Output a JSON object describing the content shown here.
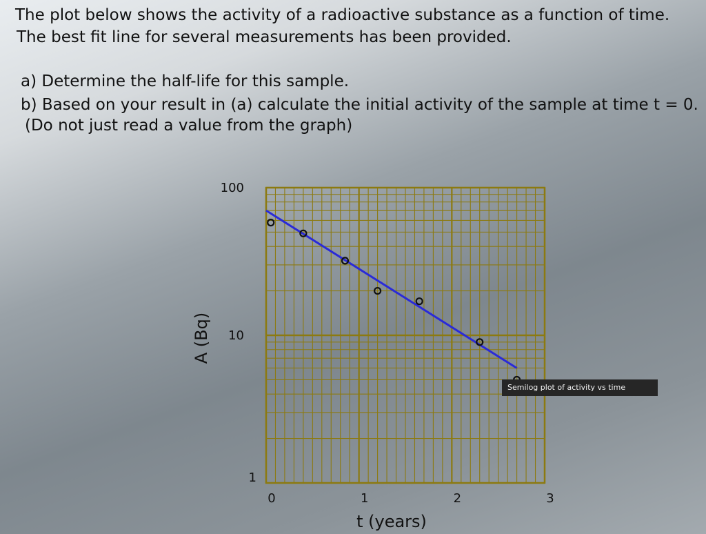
{
  "problem": {
    "line1": "The plot below shows the activity of a radioactive substance as a function of time.",
    "line2": "The best fit line for several measurements has been provided.",
    "part_a": "a) Determine the half-life for this sample.",
    "part_b": "b) Based on your result in (a) calculate the initial activity of the sample at time t = 0.",
    "note": "(Do not just read a value from the graph)"
  },
  "tooltip": "Semilog plot of activity vs time",
  "colors": {
    "grid": "#8c7a10",
    "fit_line": "#2a2ad8",
    "points": "#111111"
  },
  "chart_data": {
    "type": "scatter",
    "xlabel": "t (years)",
    "ylabel": "A (Bq)",
    "xlim": [
      0,
      3
    ],
    "ylim": [
      1,
      100
    ],
    "y_scale": "log",
    "x_ticks": [
      "0",
      "1",
      "2",
      "3"
    ],
    "y_ticks": [
      "1",
      "10",
      "100"
    ],
    "grid": true,
    "points": [
      {
        "t": 0.05,
        "A": 58
      },
      {
        "t": 0.4,
        "A": 49
      },
      {
        "t": 0.85,
        "A": 32
      },
      {
        "t": 1.2,
        "A": 20
      },
      {
        "t": 1.65,
        "A": 17
      },
      {
        "t": 2.3,
        "A": 9
      },
      {
        "t": 2.7,
        "A": 5
      }
    ],
    "fit_line": {
      "t": [
        0,
        2.7
      ],
      "A": [
        70,
        6
      ]
    }
  }
}
